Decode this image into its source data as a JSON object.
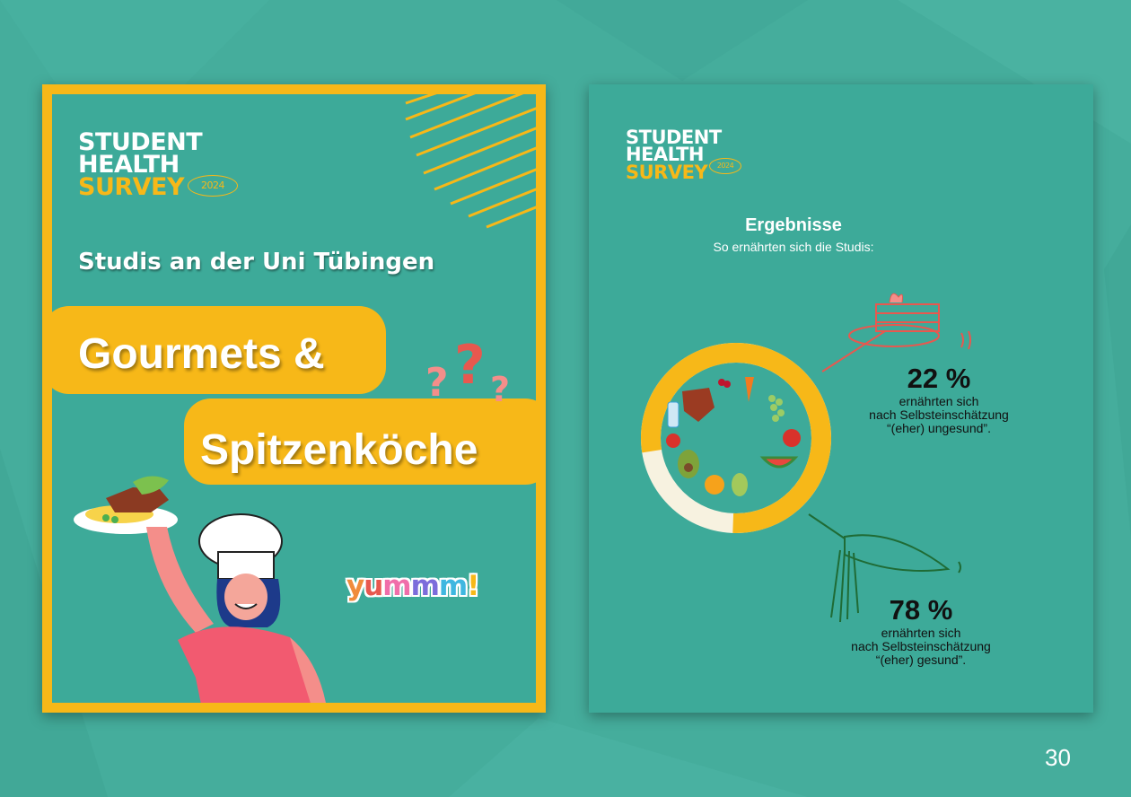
{
  "left_page": {
    "logo": {
      "line1": "STUDENT",
      "line2": "HEALTH",
      "line3": "SURVEY",
      "year": "2024"
    },
    "subtitle": "Studis an der Uni Tübingen",
    "title_line1": "Gourmets &",
    "title_line2": "Spitzenköche",
    "sticker": {
      "text": "yummm!",
      "letters": [
        "y",
        "u",
        "m",
        "m",
        "m",
        "!"
      ]
    }
  },
  "right_page": {
    "logo": {
      "line1": "STUDENT",
      "line2": "HEALTH",
      "line3": "SURVEY",
      "year": "2024"
    },
    "heading": "Ergebnisse",
    "subheading": "So ernährten sich die Studis:",
    "unhealthy": {
      "percent_label": "22 %",
      "line1": "ernährten sich",
      "line2": "nach Selbsteinschätzung",
      "line3": "“(eher) ungesund”."
    },
    "healthy": {
      "percent_label": "78 %",
      "line1": "ernährten sich",
      "line2": "nach Selbsteinschätzung",
      "line3": "“(eher) gesund”."
    },
    "ring_share": {
      "healthy": 0.78,
      "unhealthy": 0.22
    }
  },
  "page_number": "30",
  "colors": {
    "background": "#45ad9c",
    "panel": "#3daa99",
    "accent_yellow": "#f7b818",
    "accent_red": "#e8584f",
    "sticker_colors": [
      "#f08c3c",
      "#e8584f",
      "#f06eaa",
      "#7c6ddb",
      "#3fb7e0",
      "#f7b818"
    ]
  }
}
